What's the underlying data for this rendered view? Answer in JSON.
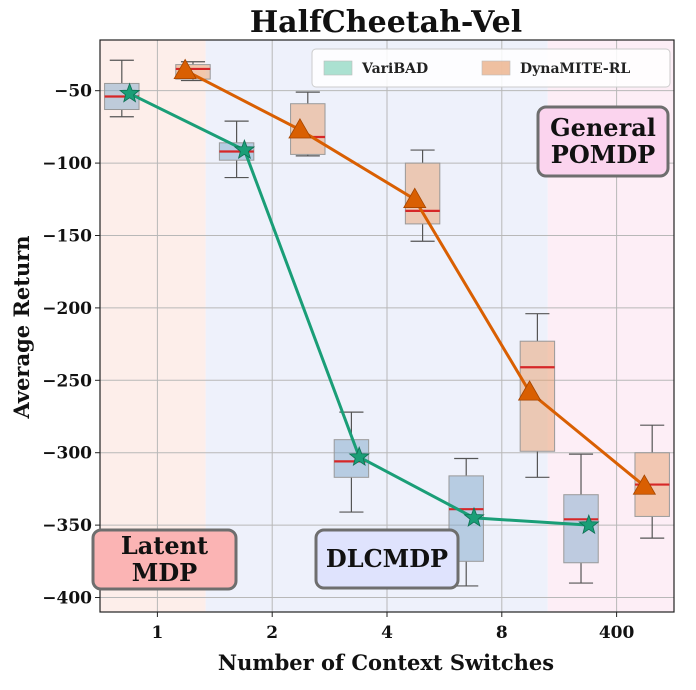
{
  "chart_data": {
    "type": "box+line",
    "title": "HalfCheetah-Vel",
    "xlabel": "Number of Context Switches",
    "ylabel": "Average Return",
    "categories": [
      "1",
      "2",
      "4",
      "8",
      "400"
    ],
    "ylim": [
      -410,
      -15
    ],
    "yticks": [
      -50,
      -100,
      -150,
      -200,
      -250,
      -300,
      -350,
      -400
    ],
    "grid": true,
    "legend_position": "top-right",
    "series": [
      {
        "name": "VariBAD",
        "color": "#1a9e77",
        "box_color": "#7fa7c9",
        "marker": "star",
        "means": [
          -52,
          -91,
          -303,
          -345,
          -350
        ],
        "boxes": [
          {
            "whislo": -68,
            "q1": -63,
            "med": -54,
            "q3": -45,
            "whishi": -29
          },
          {
            "whislo": -110,
            "q1": -98,
            "med": -92,
            "q3": -86,
            "whishi": -71
          },
          {
            "whislo": -341,
            "q1": -317,
            "med": -306,
            "q3": -291,
            "whishi": -272
          },
          {
            "whislo": -392,
            "q1": -375,
            "med": -339,
            "q3": -316,
            "whishi": -304
          },
          {
            "whislo": -390,
            "q1": -376,
            "med": -346,
            "q3": -329,
            "whishi": -301
          }
        ]
      },
      {
        "name": "DynaMITE-RL",
        "color": "#d95f02",
        "box_color": "#e8a06e",
        "marker": "triangle",
        "means": [
          -36,
          -77,
          -125,
          -258,
          -323
        ],
        "boxes": [
          {
            "whislo": -43,
            "q1": -42,
            "med": -35,
            "q3": -32,
            "whishi": -30
          },
          {
            "whislo": -95,
            "q1": -94,
            "med": -82,
            "q3": -59,
            "whishi": -51
          },
          {
            "whislo": -154,
            "q1": -142,
            "med": -133,
            "q3": -100,
            "whishi": -91
          },
          {
            "whislo": -317,
            "q1": -299,
            "med": -241,
            "q3": -223,
            "whishi": -204
          },
          {
            "whislo": -359,
            "q1": -344,
            "med": -322,
            "q3": -300,
            "whishi": -281
          }
        ]
      }
    ],
    "regions": [
      {
        "label": "Latent\nMDP",
        "fill": "#fdeeea",
        "label_bg": "#fbb4b4",
        "position": "bottom-left"
      },
      {
        "label": "DLCMDP",
        "fill": "#eef1fb",
        "label_bg": "#dfe3fd",
        "position": "bottom-center"
      },
      {
        "label": "General\nPOMDP",
        "fill": "#fdeef6",
        "label_bg": "#fbd4ee",
        "position": "top-right"
      }
    ]
  }
}
